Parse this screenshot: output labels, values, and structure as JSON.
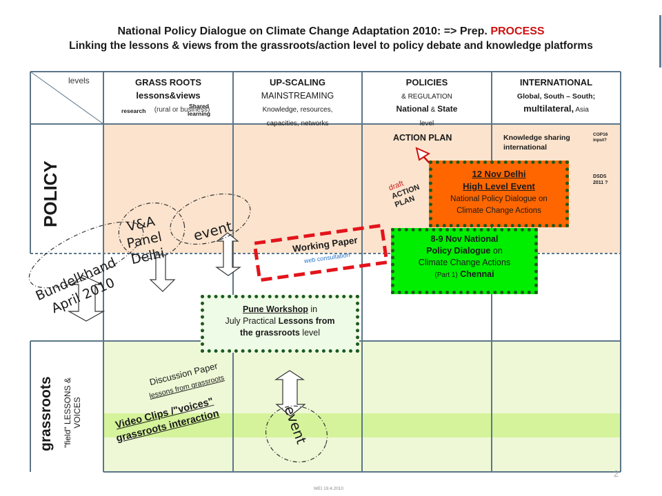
{
  "title": {
    "line1_a": "National Policy Dialogue on Climate Change Adaptation 2010: => Prep.",
    "line1_b": "PROCESS",
    "line2": "Linking the lessons & views from the grassroots/action level to policy debate and knowledge platforms"
  },
  "header": {
    "levels": "levels",
    "col1": {
      "title": "GRASS ROOTS",
      "sub": "lessons&views",
      "note": "(rural or business)",
      "research": "research",
      "shared1": "Shared",
      "shared2": "learning"
    },
    "col2": {
      "title": "UP-SCALING",
      "sub": "MAINSTREAMING",
      "note1": "Knowledge, resources,",
      "note2": "capacities, networks"
    },
    "col3": {
      "title": "POLICIES",
      "sub": "& REGULATION",
      "bold_a": "National",
      "amp": " & ",
      "bold_b": "State",
      "note": "level"
    },
    "col4": {
      "title": "INTERNATIONAL",
      "sub_a": "Global, South – South;",
      "sub_b": "multilateral,",
      "sub_c": " Asia"
    }
  },
  "rows": {
    "policy": "POLICY",
    "grassroots": "grassroots",
    "grassroots_sub1": "\"field\" LESSONS &",
    "grassroots_sub2": "VOICES"
  },
  "labels": {
    "action_plan": "ACTION PLAN",
    "knowledge_1": "Knowledge sharing",
    "knowledge_2": "international",
    "cop16_1": "COP16",
    "cop16_2": "input?",
    "dsds_1": "DSDS",
    "dsds_2": "2011 ?",
    "draft_1": "draft",
    "draft_2": "ACTION",
    "draft_3": "PLAN",
    "working_paper": "Working Paper",
    "web_consultation": "web consultation",
    "discussion_1": "Discussion Paper",
    "discussion_2": "lessons from grassroots",
    "video_1": "Video Clips /\"voices\"",
    "video_2": "grassroots interaction",
    "page_number": "2",
    "footer": "WEI 19.4.2010"
  },
  "events": {
    "delhi_1": "12 Nov Delhi",
    "delhi_2": "High Level Event",
    "delhi_3": "National Policy Dialogue on",
    "delhi_4": "Climate Change Actions",
    "chennai_1": "8-9 Nov National",
    "chennai_2": "Policy Dialogue",
    "chennai_2b": " on",
    "chennai_3": "Climate Change Actions",
    "chennai_4a": "(Part 1)",
    "chennai_4b": " Chennai",
    "pune_1": "Pune Workshop",
    "pune_1b": " in",
    "pune_2a": "July Practical ",
    "pune_2b": "Lessons from",
    "pune_3a": "the grassroots",
    "pune_3b": " level"
  },
  "handwritten": {
    "bundelkhand_1": "Bundelkhand",
    "bundelkhand_2": "April 2010",
    "va_1": "V&A",
    "va_2": "Panel",
    "va_3": "Delhi",
    "event_upper": "event",
    "event_lower": "event"
  },
  "colors": {
    "peach": "#fbe3cd",
    "light_green": "#eef8d6",
    "green_band": "#d5f39b",
    "grid_line": "#5b7588",
    "orange_box": "#ff6600",
    "green_box": "#00ee00",
    "pune_box": "#eefbe6",
    "dashed_red": "#e3141b",
    "dotted_border": "#1d5a1d"
  }
}
